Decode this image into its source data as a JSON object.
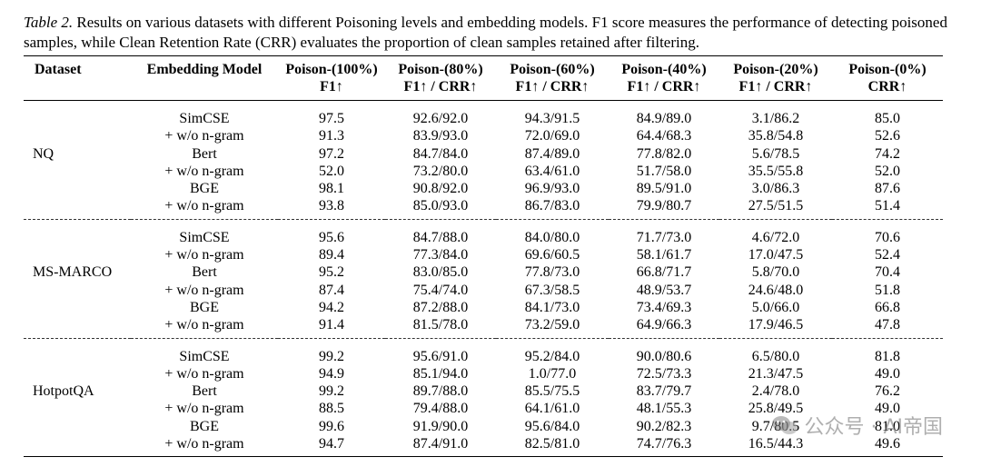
{
  "caption": {
    "label": "Table 2.",
    "text": " Results on various datasets with different Poisoning levels and embedding models. F1 score measures the performance of detecting poisoned samples, while Clean Retention Rate (CRR) evaluates the proportion of clean samples retained after filtering."
  },
  "header": {
    "dataset": "Dataset",
    "model": "Embedding Model",
    "cols": [
      {
        "top": "Poison-(100%)",
        "bottom": "F1↑"
      },
      {
        "top": "Poison-(80%)",
        "bottom": "F1↑ / CRR↑"
      },
      {
        "top": "Poison-(60%)",
        "bottom": "F1↑ / CRR↑"
      },
      {
        "top": "Poison-(40%)",
        "bottom": "F1↑ / CRR↑"
      },
      {
        "top": "Poison-(20%)",
        "bottom": "F1↑ / CRR↑"
      },
      {
        "top": "Poison-(0%)",
        "bottom": "CRR↑"
      }
    ]
  },
  "groups": [
    {
      "dataset": "NQ",
      "rows": [
        {
          "model": "SimCSE",
          "vals": [
            "97.5",
            "92.6/92.0",
            "94.3/91.5",
            "84.9/89.0",
            "3.1/86.2",
            "85.0"
          ]
        },
        {
          "model": "+ w/o n-gram",
          "vals": [
            "91.3",
            "83.9/93.0",
            "72.0/69.0",
            "64.4/68.3",
            "35.8/54.8",
            "52.6"
          ]
        },
        {
          "model": "Bert",
          "vals": [
            "97.2",
            "84.7/84.0",
            "87.4/89.0",
            "77.8/82.0",
            "5.6/78.5",
            "74.2"
          ]
        },
        {
          "model": "+ w/o n-gram",
          "vals": [
            "52.0",
            "73.2/80.0",
            "63.4/61.0",
            "51.7/58.0",
            "35.5/55.8",
            "52.0"
          ]
        },
        {
          "model": "BGE",
          "vals": [
            "98.1",
            "90.8/92.0",
            "96.9/93.0",
            "89.5/91.0",
            "3.0/86.3",
            "87.6"
          ]
        },
        {
          "model": "+ w/o n-gram",
          "vals": [
            "93.8",
            "85.0/93.0",
            "86.7/83.0",
            "79.9/80.7",
            "27.5/51.5",
            "51.4"
          ]
        }
      ]
    },
    {
      "dataset": "MS-MARCO",
      "rows": [
        {
          "model": "SimCSE",
          "vals": [
            "95.6",
            "84.7/88.0",
            "84.0/80.0",
            "71.7/73.0",
            "4.6/72.0",
            "70.6"
          ]
        },
        {
          "model": "+ w/o n-gram",
          "vals": [
            "89.4",
            "77.3/84.0",
            "69.6/60.5",
            "58.1/61.7",
            "17.0/47.5",
            "52.4"
          ]
        },
        {
          "model": "Bert",
          "vals": [
            "95.2",
            "83.0/85.0",
            "77.8/73.0",
            "66.8/71.7",
            "5.8/70.0",
            "70.4"
          ]
        },
        {
          "model": "+ w/o n-gram",
          "vals": [
            "87.4",
            "75.4/74.0",
            "67.3/58.5",
            "48.9/53.7",
            "24.6/48.0",
            "51.8"
          ]
        },
        {
          "model": "BGE",
          "vals": [
            "94.2",
            "87.2/88.0",
            "84.1/73.0",
            "73.4/69.3",
            "5.0/66.0",
            "66.8"
          ]
        },
        {
          "model": "+ w/o n-gram",
          "vals": [
            "91.4",
            "81.5/78.0",
            "73.2/59.0",
            "64.9/66.3",
            "17.9/46.5",
            "47.8"
          ]
        }
      ]
    },
    {
      "dataset": "HotpotQA",
      "rows": [
        {
          "model": "SimCSE",
          "vals": [
            "99.2",
            "95.6/91.0",
            "95.2/84.0",
            "90.0/80.6",
            "6.5/80.0",
            "81.8"
          ]
        },
        {
          "model": "+ w/o n-gram",
          "vals": [
            "94.9",
            "85.1/94.0",
            "1.0/77.0",
            "72.5/73.3",
            "21.3/47.5",
            "49.0"
          ]
        },
        {
          "model": "Bert",
          "vals": [
            "99.2",
            "89.7/88.0",
            "85.5/75.5",
            "83.7/79.7",
            "2.4/78.0",
            "76.2"
          ]
        },
        {
          "model": "+ w/o n-gram",
          "vals": [
            "88.5",
            "79.4/88.0",
            "64.1/61.0",
            "48.1/55.3",
            "25.8/49.5",
            "49.0"
          ]
        },
        {
          "model": "BGE",
          "vals": [
            "99.6",
            "91.9/90.0",
            "95.6/84.0",
            "90.2/82.3",
            "9.7/80.5",
            "81.0"
          ]
        },
        {
          "model": "+ w/o n-gram",
          "vals": [
            "94.7",
            "87.4/91.0",
            "82.5/81.0",
            "74.7/76.3",
            "16.5/44.3",
            "49.6"
          ]
        }
      ]
    }
  ],
  "watermark": {
    "text": "公众号 · AI帝国",
    "icon": "wechat-icon"
  }
}
